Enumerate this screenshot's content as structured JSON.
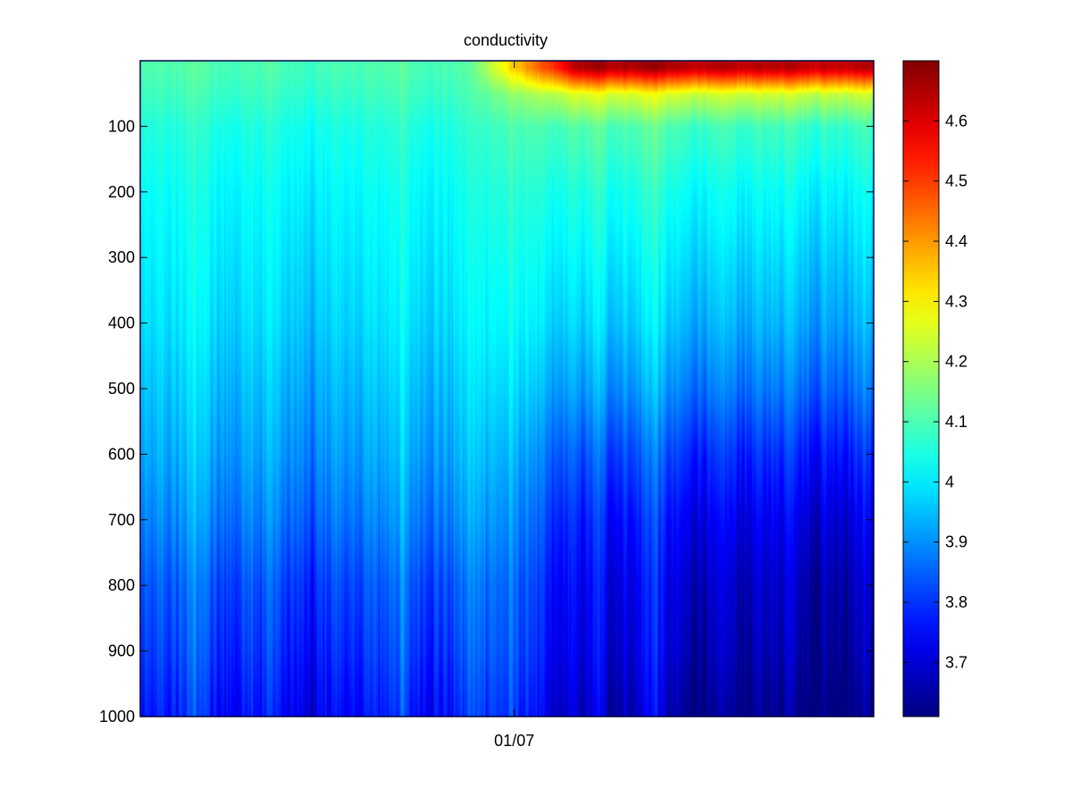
{
  "figure": {
    "title": "conductivity"
  },
  "chart_data": {
    "type": "heatmap",
    "title": "conductivity",
    "xlabel": "",
    "ylabel": "",
    "x_tick_labels": [
      "01/07"
    ],
    "y_axis": {
      "range": [
        0,
        1000
      ],
      "reversed": true,
      "ticks": [
        100,
        200,
        300,
        400,
        500,
        600,
        700,
        800,
        900,
        1000
      ]
    },
    "colorbar": {
      "colormap": "jet",
      "range": [
        3.61,
        4.7
      ],
      "ticks": [
        3.7,
        3.8,
        3.9,
        4.0,
        4.1,
        4.2,
        4.3,
        4.4,
        4.5,
        4.6
      ],
      "tick_labels": [
        "3.7",
        "3.8",
        "3.9",
        "4",
        "4.1",
        "4.2",
        "4.3",
        "4.4",
        "4.5",
        "4.6"
      ]
    },
    "grid": false,
    "approximate_profile": {
      "depth": [
        10,
        50,
        100,
        200,
        300,
        400,
        500,
        600,
        700,
        800,
        900,
        1000
      ],
      "early_period": [
        4.1,
        4.08,
        4.05,
        4.02,
        4.0,
        3.98,
        3.95,
        3.92,
        3.88,
        3.83,
        3.8,
        3.76
      ],
      "late_period": [
        4.65,
        4.25,
        4.1,
        4.04,
        4.0,
        3.96,
        3.9,
        3.82,
        3.76,
        3.72,
        3.7,
        3.66
      ]
    },
    "colors": {
      "frame": "#000000",
      "axes_line": "#000040"
    }
  }
}
